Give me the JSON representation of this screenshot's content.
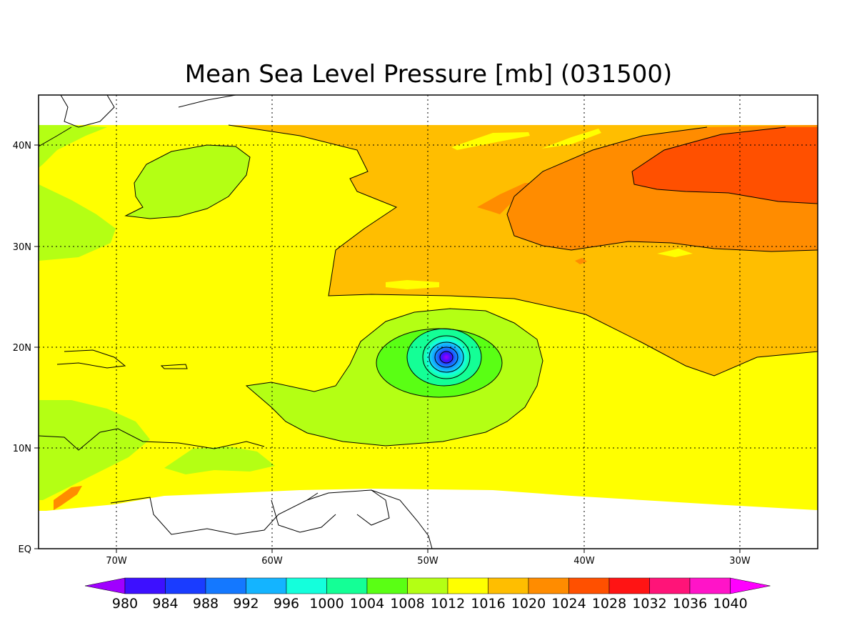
{
  "title": "Mean Sea Level Pressure [mb] (031500)",
  "map": {
    "lon_range": [
      -75,
      -25
    ],
    "lat_range": [
      0,
      45
    ],
    "lon_ticks": [
      "70W",
      "60W",
      "50W",
      "40W",
      "30W"
    ],
    "lat_ticks": [
      "EQ",
      "10N",
      "20N",
      "30N",
      "40N"
    ],
    "grid": "dotted",
    "storm_center": {
      "lon": -48.9,
      "lat": 18.8,
      "min_pressure_band": "<980"
    }
  },
  "colorbar": {
    "levels": [
      "980",
      "984",
      "988",
      "992",
      "996",
      "1000",
      "1004",
      "1008",
      "1012",
      "1016",
      "1020",
      "1024",
      "1028",
      "1032",
      "1036",
      "1040"
    ],
    "colors": [
      "#a000ff",
      "#3d10ff",
      "#1a3cff",
      "#1478ff",
      "#14b4ff",
      "#14ffdc",
      "#14ff96",
      "#5aff14",
      "#b4ff14",
      "#ffff00",
      "#ffbe00",
      "#ff8c00",
      "#ff5000",
      "#ff1414",
      "#ff1478",
      "#ff14c8",
      "#ff00ff"
    ]
  }
}
